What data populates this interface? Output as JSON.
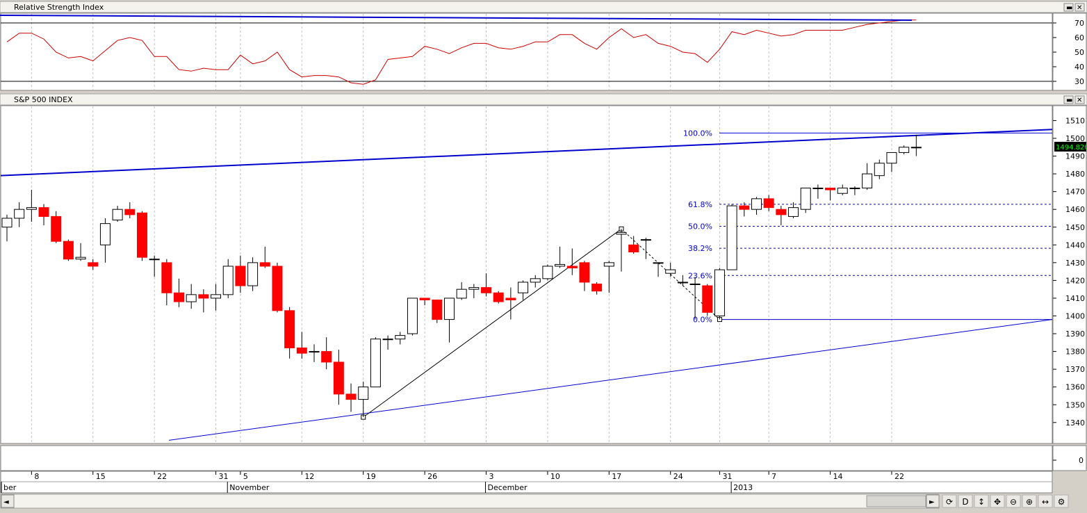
{
  "rsi_panel": {
    "title": "Relative Strength Index",
    "levels": [
      70,
      30
    ],
    "ticks": [
      70,
      60,
      50,
      40,
      30
    ]
  },
  "price_panel": {
    "title": "S&P 500 INDEX",
    "last_price": "1494.820",
    "ticks": [
      1510,
      1500,
      1490,
      1480,
      1470,
      1460,
      1450,
      1440,
      1430,
      1420,
      1410,
      1400,
      1390,
      1380,
      1370,
      1360,
      1350,
      1340
    ],
    "fib_labels": [
      "100.0%",
      "61.8%",
      "50.0%",
      "38.2%",
      "23.6%",
      "0.0%"
    ]
  },
  "volume_panel": {
    "ticks": [
      0
    ]
  },
  "x_axis": {
    "day_labels": [
      "8",
      "15",
      "22",
      "31",
      "5",
      "12",
      "19",
      "26",
      "3",
      "10",
      "17",
      "24",
      "31",
      "7",
      "14",
      "22"
    ],
    "month_labels": [
      "ber",
      "November",
      "December",
      "2013"
    ]
  },
  "toolbar": {
    "scroll_left": "◄",
    "scroll_right": "►",
    "buttons": [
      {
        "icon": "refresh-icon",
        "glyph": "⟳"
      },
      {
        "icon": "period-d-icon",
        "glyph": "D"
      },
      {
        "icon": "vertical-resize-icon",
        "glyph": "↕"
      },
      {
        "icon": "move-icon",
        "glyph": "✥"
      },
      {
        "icon": "zoom-out-icon",
        "glyph": "⊖"
      },
      {
        "icon": "zoom-in-icon",
        "glyph": "⊕"
      },
      {
        "icon": "horizontal-resize-icon",
        "glyph": "↔"
      },
      {
        "icon": "settings-icon",
        "glyph": "⚙"
      }
    ]
  },
  "colors": {
    "up_candle": "#ffffff",
    "down_candle": "#ff0000",
    "rsi_line": "#cc0000",
    "trend_line": "#0000cc",
    "fib_line": "#0000cc",
    "last_price_bg": "#000000",
    "last_price_text": "#00ff00"
  },
  "chart_data": [
    {
      "type": "line",
      "title": "Relative Strength Index",
      "ylim": [
        25,
        75
      ],
      "levels": [
        70,
        30
      ],
      "x": [
        "2012-10-04",
        "2012-10-05",
        "2012-10-08",
        "2012-10-09",
        "2012-10-10",
        "2012-10-11",
        "2012-10-12",
        "2012-10-15",
        "2012-10-16",
        "2012-10-17",
        "2012-10-18",
        "2012-10-19",
        "2012-10-22",
        "2012-10-23",
        "2012-10-24",
        "2012-10-25",
        "2012-10-26",
        "2012-10-31",
        "2012-11-01",
        "2012-11-02",
        "2012-11-05",
        "2012-11-06",
        "2012-11-07",
        "2012-11-08",
        "2012-11-09",
        "2012-11-12",
        "2012-11-13",
        "2012-11-14",
        "2012-11-15",
        "2012-11-16",
        "2012-11-19",
        "2012-11-20",
        "2012-11-21",
        "2012-11-23",
        "2012-11-26",
        "2012-11-27",
        "2012-11-28",
        "2012-11-29",
        "2012-11-30",
        "2012-12-03",
        "2012-12-04",
        "2012-12-05",
        "2012-12-06",
        "2012-12-07",
        "2012-12-10",
        "2012-12-11",
        "2012-12-12",
        "2012-12-13",
        "2012-12-14",
        "2012-12-17",
        "2012-12-18",
        "2012-12-19",
        "2012-12-20",
        "2012-12-21",
        "2012-12-24",
        "2012-12-26",
        "2012-12-27",
        "2012-12-28",
        "2012-12-31",
        "2013-01-02",
        "2013-01-03",
        "2013-01-04",
        "2013-01-07",
        "2013-01-08",
        "2013-01-09",
        "2013-01-10",
        "2013-01-11",
        "2013-01-14",
        "2013-01-15",
        "2013-01-16",
        "2013-01-17",
        "2013-01-18",
        "2013-01-22",
        "2013-01-23",
        "2013-01-24"
      ],
      "series": [
        {
          "values": [
            57,
            63,
            63,
            59,
            50,
            46,
            47,
            44,
            51,
            58,
            60,
            58,
            47,
            47,
            38,
            37,
            39,
            38,
            38,
            48,
            42,
            44,
            50,
            38,
            33,
            34,
            34,
            33,
            29,
            28,
            31,
            45,
            46,
            47,
            54,
            52,
            49,
            53,
            56,
            56,
            53,
            52,
            54,
            57,
            57,
            62,
            62,
            56,
            52,
            60,
            66,
            60,
            62,
            56,
            54,
            50,
            49,
            43,
            52,
            64,
            62,
            65,
            63,
            61,
            62,
            65,
            65,
            65,
            65,
            67,
            69,
            70,
            71,
            72,
            72
          ]
        }
      ]
    },
    {
      "type": "candlestick",
      "title": "S&P 500 INDEX",
      "ylim": [
        1330,
        1515
      ],
      "x": [
        "2012-10-04",
        "2012-10-05",
        "2012-10-08",
        "2012-10-09",
        "2012-10-10",
        "2012-10-11",
        "2012-10-12",
        "2012-10-15",
        "2012-10-16",
        "2012-10-17",
        "2012-10-18",
        "2012-10-19",
        "2012-10-22",
        "2012-10-23",
        "2012-10-24",
        "2012-10-25",
        "2012-10-26",
        "2012-10-31",
        "2012-11-01",
        "2012-11-02",
        "2012-11-05",
        "2012-11-06",
        "2012-11-07",
        "2012-11-08",
        "2012-11-09",
        "2012-11-12",
        "2012-11-13",
        "2012-11-14",
        "2012-11-15",
        "2012-11-16",
        "2012-11-19",
        "2012-11-20",
        "2012-11-21",
        "2012-11-23",
        "2012-11-26",
        "2012-11-27",
        "2012-11-28",
        "2012-11-29",
        "2012-11-30",
        "2012-12-03",
        "2012-12-04",
        "2012-12-05",
        "2012-12-06",
        "2012-12-07",
        "2012-12-10",
        "2012-12-11",
        "2012-12-12",
        "2012-12-13",
        "2012-12-14",
        "2012-12-17",
        "2012-12-18",
        "2012-12-19",
        "2012-12-20",
        "2012-12-21",
        "2012-12-24",
        "2012-12-26",
        "2012-12-27",
        "2012-12-28",
        "2012-12-31",
        "2013-01-02",
        "2013-01-03",
        "2013-01-04",
        "2013-01-07",
        "2013-01-08",
        "2013-01-09",
        "2013-01-10",
        "2013-01-11",
        "2013-01-14",
        "2013-01-15",
        "2013-01-16",
        "2013-01-17",
        "2013-01-18",
        "2013-01-22",
        "2013-01-23",
        "2013-01-24"
      ],
      "open": [
        1450,
        1455,
        1460,
        1461,
        1456,
        1442,
        1432,
        1430,
        1440,
        1454,
        1460,
        1458,
        1432,
        1430,
        1413,
        1408,
        1412,
        1410,
        1412,
        1428,
        1417,
        1430,
        1428,
        1403,
        1382,
        1380,
        1380,
        1374,
        1356,
        1353,
        1360,
        1387,
        1387,
        1390,
        1410,
        1409,
        1398,
        1410,
        1415,
        1416,
        1413,
        1410,
        1413,
        1419,
        1421,
        1428,
        1428,
        1430,
        1418,
        1428,
        1446,
        1440,
        1443,
        1430,
        1424,
        1419,
        1418,
        1417,
        1400,
        1426,
        1462,
        1460,
        1466,
        1460,
        1456,
        1460,
        1472,
        1472,
        1469,
        1472,
        1472,
        1479,
        1486,
        1492,
        1495
      ],
      "close": [
        1455,
        1460,
        1461,
        1456,
        1442,
        1432,
        1433,
        1428,
        1452,
        1460,
        1457,
        1433,
        1432,
        1413,
        1408,
        1412,
        1410,
        1412,
        1428,
        1417,
        1430,
        1428,
        1403,
        1382,
        1379,
        1380,
        1374,
        1356,
        1353,
        1360,
        1387,
        1387,
        1389,
        1410,
        1409,
        1398,
        1410,
        1415,
        1416,
        1413,
        1408,
        1409,
        1419,
        1421,
        1428,
        1429,
        1427,
        1419,
        1414,
        1430,
        1447,
        1436,
        1443,
        1430,
        1426,
        1419,
        1418,
        1402,
        1426,
        1462,
        1460,
        1466,
        1461,
        1457,
        1461,
        1472,
        1472,
        1471,
        1472,
        1472,
        1480,
        1486,
        1492,
        1495,
        1495
      ],
      "high": [
        1457,
        1464,
        1471,
        1463,
        1459,
        1443,
        1441,
        1432,
        1455,
        1462,
        1464,
        1459,
        1434,
        1432,
        1421,
        1418,
        1415,
        1418,
        1432,
        1434,
        1433,
        1439,
        1430,
        1405,
        1391,
        1384,
        1388,
        1381,
        1362,
        1363,
        1388,
        1389,
        1391,
        1410,
        1410,
        1409,
        1410,
        1419,
        1418,
        1424,
        1414,
        1416,
        1420,
        1423,
        1429,
        1439,
        1438,
        1431,
        1419,
        1431,
        1449,
        1445,
        1444,
        1430,
        1430,
        1423,
        1422,
        1418,
        1427,
        1463,
        1464,
        1467,
        1468,
        1462,
        1464,
        1472,
        1474,
        1472,
        1474,
        1473,
        1486,
        1488,
        1492,
        1496,
        1502
      ],
      "low": [
        1442,
        1450,
        1453,
        1451,
        1441,
        1431,
        1431,
        1426,
        1430,
        1453,
        1455,
        1431,
        1422,
        1406,
        1405,
        1404,
        1402,
        1403,
        1410,
        1413,
        1414,
        1427,
        1402,
        1376,
        1376,
        1374,
        1370,
        1350,
        1346,
        1343,
        1360,
        1381,
        1384,
        1389,
        1406,
        1396,
        1385,
        1409,
        1410,
        1411,
        1407,
        1398,
        1409,
        1416,
        1420,
        1427,
        1423,
        1414,
        1412,
        1413,
        1425,
        1435,
        1432,
        1422,
        1422,
        1417,
        1398,
        1400,
        1398,
        1426,
        1456,
        1457,
        1459,
        1451,
        1455,
        1458,
        1466,
        1465,
        1468,
        1468,
        1471,
        1477,
        1481,
        1491,
        1490
      ]
    }
  ]
}
